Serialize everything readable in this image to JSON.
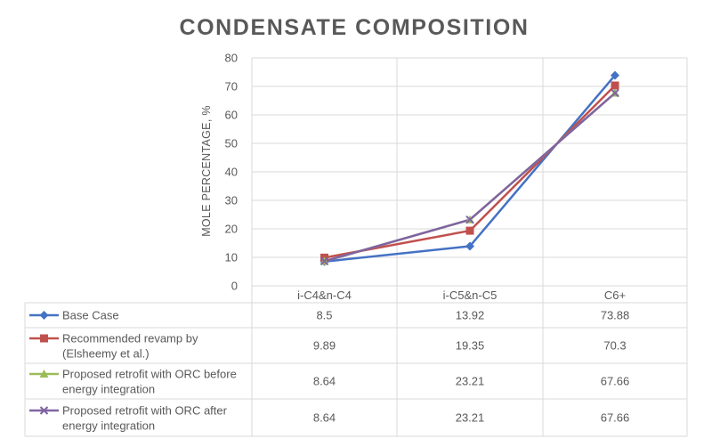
{
  "chart_data": {
    "type": "line",
    "title": "CONDENSATE COMPOSITION",
    "ylabel": "MOLE PERCENTAGE, %",
    "xlabel": "",
    "categories": [
      "i-C4&n-C4",
      "i-C5&n-C5",
      "C6+"
    ],
    "ylim": [
      0,
      80
    ],
    "yticks": [
      "0",
      "10",
      "20",
      "30",
      "40",
      "50",
      "60",
      "70",
      "80"
    ],
    "grid": true,
    "legend": "data-table",
    "series": [
      {
        "name_lines": [
          "Base Case"
        ],
        "values": [
          8.5,
          13.92,
          73.88
        ],
        "labels": [
          "8.5",
          "13.92",
          "73.88"
        ],
        "color": "#4472C4",
        "marker": "diamond"
      },
      {
        "name_lines": [
          "Recommended revamp by",
          "(Elsheemy et al.)"
        ],
        "values": [
          9.89,
          19.35,
          70.3
        ],
        "labels": [
          "9.89",
          "19.35",
          "70.3"
        ],
        "color": "#C0504D",
        "marker": "square"
      },
      {
        "name_lines": [
          "Proposed retrofit with ORC before",
          "energy integration"
        ],
        "values": [
          8.64,
          23.21,
          67.66
        ],
        "labels": [
          "8.64",
          "23.21",
          "67.66"
        ],
        "color": "#9BBB59",
        "marker": "triangle"
      },
      {
        "name_lines": [
          "Proposed retrofit with ORC after",
          "energy integration"
        ],
        "values": [
          8.64,
          23.21,
          67.66
        ],
        "labels": [
          "8.64",
          "23.21",
          "67.66"
        ],
        "color": "#8064A2",
        "marker": "x"
      }
    ]
  }
}
